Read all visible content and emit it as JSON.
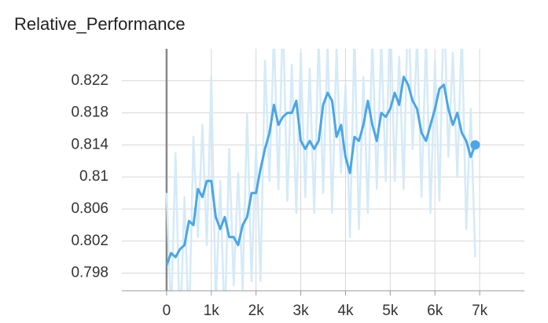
{
  "chart_data": {
    "type": "line",
    "title": "Relative_Performance",
    "x": [
      0,
      100,
      200,
      300,
      400,
      500,
      600,
      700,
      800,
      900,
      1000,
      1100,
      1200,
      1300,
      1400,
      1500,
      1600,
      1700,
      1800,
      1900,
      2000,
      2100,
      2200,
      2300,
      2400,
      2500,
      2600,
      2700,
      2800,
      2900,
      3000,
      3100,
      3200,
      3300,
      3400,
      3500,
      3600,
      3700,
      3800,
      3900,
      4000,
      4100,
      4200,
      4300,
      4400,
      4500,
      4600,
      4700,
      4800,
      4900,
      5000,
      5100,
      5200,
      5300,
      5400,
      5500,
      5600,
      5700,
      5800,
      5900,
      6000,
      6100,
      6200,
      6300,
      6400,
      6500,
      6600,
      6700,
      6800,
      6900
    ],
    "series": [
      {
        "color": "#d4eaf8",
        "values": [
          0.808,
          0.7925,
          0.813,
          0.79,
          0.8075,
          0.7905,
          0.815,
          0.8025,
          0.8165,
          0.8015,
          0.8225,
          0.794,
          0.8095,
          0.791,
          0.8135,
          0.7965,
          0.8105,
          0.796,
          0.818,
          0.797,
          0.814,
          0.797,
          0.8245,
          0.8095,
          0.828,
          0.8085,
          0.8305,
          0.807,
          0.824,
          0.8055,
          0.8255,
          0.8075,
          0.8235,
          0.8055,
          0.8275,
          0.808,
          0.8265,
          0.8055,
          0.826,
          0.8105,
          0.8215,
          0.8025,
          0.828,
          0.8035,
          0.8225,
          0.8055,
          0.8275,
          0.8085,
          0.827,
          0.8095,
          0.8315,
          0.8095,
          0.825,
          0.8085,
          0.8325,
          0.8135,
          0.8275,
          0.8075,
          0.8275,
          0.8055,
          0.8245,
          0.807,
          0.8325,
          0.8125,
          0.8255,
          0.81,
          0.8285,
          0.8035,
          0.8185,
          0.8
        ]
      },
      {
        "color": "#4aa6e6",
        "values": [
          0.799,
          0.8005,
          0.8,
          0.801,
          0.8015,
          0.8045,
          0.804,
          0.8085,
          0.8075,
          0.8095,
          0.8095,
          0.805,
          0.8035,
          0.805,
          0.8025,
          0.8025,
          0.8015,
          0.804,
          0.805,
          0.808,
          0.808,
          0.811,
          0.8135,
          0.8155,
          0.819,
          0.8165,
          0.8175,
          0.818,
          0.818,
          0.8195,
          0.8145,
          0.8135,
          0.8145,
          0.8135,
          0.8145,
          0.819,
          0.8205,
          0.8195,
          0.815,
          0.8165,
          0.8125,
          0.8105,
          0.815,
          0.8145,
          0.8165,
          0.8195,
          0.8165,
          0.8145,
          0.818,
          0.8175,
          0.8185,
          0.8205,
          0.819,
          0.8225,
          0.8215,
          0.8195,
          0.8185,
          0.8155,
          0.8145,
          0.8165,
          0.8185,
          0.821,
          0.8215,
          0.8185,
          0.8165,
          0.818,
          0.8155,
          0.8145,
          0.8125,
          0.814
        ]
      }
    ],
    "xlim": [
      -1000,
      8000
    ],
    "xticks": [
      {
        "value": 0,
        "label": "0"
      },
      {
        "value": 1000,
        "label": "1k"
      },
      {
        "value": 2000,
        "label": "2k"
      },
      {
        "value": 3000,
        "label": "3k"
      },
      {
        "value": 4000,
        "label": "4k"
      },
      {
        "value": 5000,
        "label": "5k"
      },
      {
        "value": 6000,
        "label": "6k"
      },
      {
        "value": 7000,
        "label": "7k"
      }
    ],
    "ylim": [
      0.7958,
      0.826
    ],
    "yticks": [
      0.798,
      0.802,
      0.806,
      0.81,
      0.814,
      0.818,
      0.822
    ],
    "grid": true
  }
}
